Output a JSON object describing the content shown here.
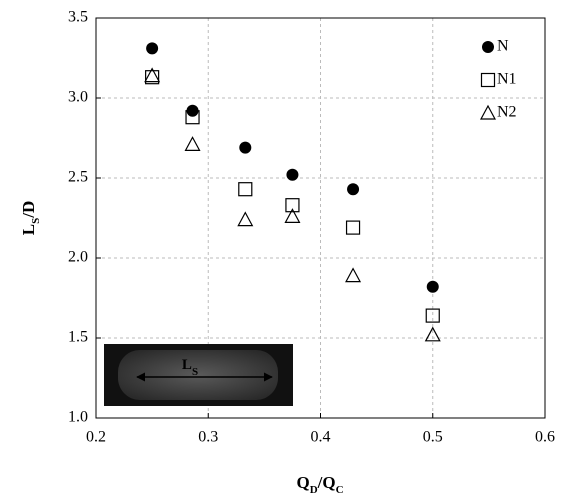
{
  "chart_data": {
    "type": "scatter",
    "x_label": [
      {
        "text": "Q"
      },
      {
        "text": "D",
        "sub": true
      },
      {
        "text": "/Q"
      },
      {
        "text": "C",
        "sub": true
      }
    ],
    "y_label": [
      {
        "text": "L"
      },
      {
        "text": "S",
        "sub": true
      },
      {
        "text": "/D"
      }
    ],
    "inset_label": [
      {
        "text": "L"
      },
      {
        "text": "S",
        "sub": true
      }
    ],
    "xlim": [
      0.2,
      0.6
    ],
    "xticks": [
      0.2,
      0.3,
      0.4,
      0.5,
      0.6
    ],
    "ylim": [
      1.0,
      3.5
    ],
    "yticks": [
      {
        "value": 1.0,
        "label": "1.0"
      },
      1.5,
      {
        "value": 2.0,
        "label": "2.0"
      },
      2.5,
      {
        "value": 3.0,
        "label": "3.0"
      },
      3.5
    ],
    "grid": true,
    "legend": "upper right",
    "series": [
      {
        "name": "N",
        "color": "#000000",
        "marker": "circle",
        "x": [
          0.25,
          0.286,
          0.333,
          0.375,
          0.429,
          0.5
        ],
        "values": [
          3.31,
          2.92,
          2.69,
          2.52,
          2.43,
          1.82
        ]
      },
      {
        "name": "N1",
        "color": "#000000",
        "marker": "square",
        "x": [
          0.25,
          0.286,
          0.333,
          0.375,
          0.429,
          0.5
        ],
        "values": [
          3.13,
          2.88,
          2.43,
          2.33,
          2.19,
          1.64
        ]
      },
      {
        "name": "N2",
        "color": "#000000",
        "marker": "triangle",
        "x": [
          0.25,
          0.286,
          0.333,
          0.375,
          0.429,
          0.5
        ],
        "values": [
          3.14,
          2.71,
          2.24,
          2.26,
          1.89,
          1.52
        ]
      }
    ]
  }
}
